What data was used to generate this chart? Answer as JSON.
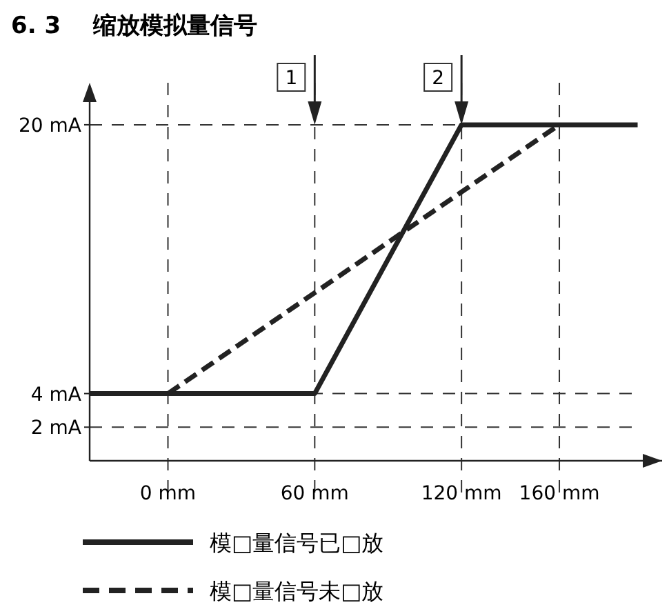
{
  "chart_data": {
    "type": "line",
    "title": "6. 3    缩放模拟量信号",
    "xlim": [
      -32,
      202
    ],
    "ylim": [
      0,
      22.5
    ],
    "xticks": [
      {
        "value": 0,
        "label": "0 mm"
      },
      {
        "value": 60,
        "label": "60 mm"
      },
      {
        "value": 120,
        "label": "120 mm"
      },
      {
        "value": 160,
        "label": "160 mm"
      }
    ],
    "yticks": [
      {
        "value": 2,
        "label": "2 mA"
      },
      {
        "value": 4,
        "label": "4 mA"
      },
      {
        "value": 20,
        "label": "20 mA"
      }
    ],
    "grid": true,
    "legend": "bottom",
    "marker": "none",
    "series": [
      {
        "name": "模□量信号已□放",
        "color": "#222222",
        "line_style": "solid",
        "x": [
          -32,
          60,
          120,
          192
        ],
        "values": [
          4,
          4,
          20,
          20
        ]
      },
      {
        "name": "模□量信号未□放",
        "color": "#222222",
        "line_style": "dashed",
        "x": [
          0,
          160
        ],
        "values": [
          4,
          20
        ]
      }
    ],
    "annotations": [
      "1",
      "2"
    ]
  }
}
